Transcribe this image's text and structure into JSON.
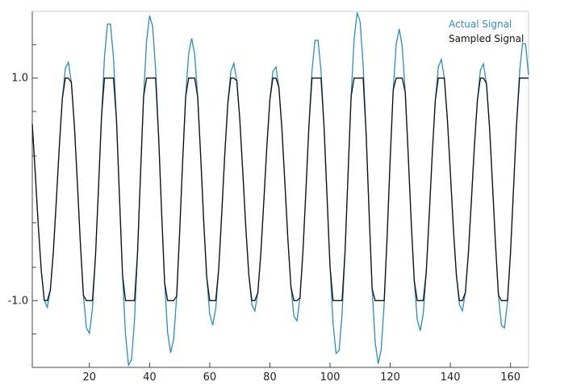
{
  "chart_data": {
    "type": "line",
    "title": "",
    "xlabel": "",
    "ylabel": "",
    "xlim": [
      1,
      166
    ],
    "ylim": [
      -1.6,
      1.6
    ],
    "x_ticks": [
      20,
      40,
      60,
      80,
      100,
      120,
      140,
      160
    ],
    "y_tick_labels": [
      {
        "value": 1.0,
        "label": "1.0"
      },
      {
        "value": -1.0,
        "label": "-1.0"
      }
    ],
    "y_minor_ticks": [
      1.3,
      0.7,
      0.3,
      -0.3,
      -0.7,
      -1.3
    ],
    "grid": false,
    "legend_position": "top-right",
    "series": [
      {
        "name": "Actual Signal",
        "color": "#2b8cbe",
        "model": "sinusoid with slowly modulated amplitude",
        "period": 13.8,
        "phase_zero_x": 2.3,
        "amplitude_range": [
          1.05,
          1.65
        ],
        "peaks": [
          {
            "x": 10,
            "y": 1.1
          },
          {
            "x": 25,
            "y": 1.5
          },
          {
            "x": 38,
            "y": 1.6
          },
          {
            "x": 52,
            "y": 1.4
          },
          {
            "x": 66,
            "y": 1.15
          },
          {
            "x": 80,
            "y": 1.1
          },
          {
            "x": 94,
            "y": 1.35
          },
          {
            "x": 107,
            "y": 1.6
          },
          {
            "x": 121,
            "y": 1.5
          },
          {
            "x": 135,
            "y": 1.2
          },
          {
            "x": 149,
            "y": 1.1
          },
          {
            "x": 165,
            "y": 1.35
          }
        ],
        "troughs": [
          {
            "x": 4,
            "y": -1.05
          },
          {
            "x": 18,
            "y": -1.25
          },
          {
            "x": 31,
            "y": -1.6
          },
          {
            "x": 45,
            "y": -1.5
          },
          {
            "x": 59,
            "y": -1.25
          },
          {
            "x": 73,
            "y": -1.1
          },
          {
            "x": 87,
            "y": -1.15
          },
          {
            "x": 100,
            "y": -1.45
          },
          {
            "x": 114,
            "y": -1.6
          },
          {
            "x": 128,
            "y": -1.3
          },
          {
            "x": 142,
            "y": -1.1
          },
          {
            "x": 156,
            "y": -1.25
          }
        ]
      },
      {
        "name": "Sampled Signal",
        "color": "#111111",
        "model": "Actual Signal clipped to the range [-1, 1]",
        "clip": [
          -1.0,
          1.0
        ]
      }
    ]
  }
}
